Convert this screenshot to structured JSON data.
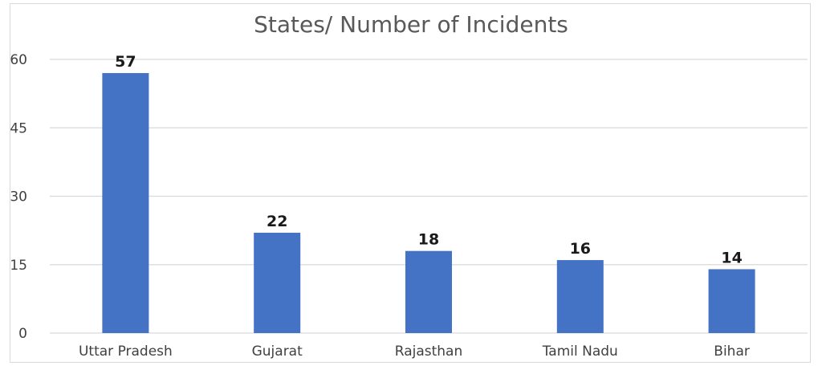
{
  "chart_data": {
    "type": "bar",
    "title": "States/ Number of Incidents",
    "xlabel": "",
    "ylabel": "",
    "categories": [
      "Uttar Pradesh",
      "Gujarat",
      "Rajasthan",
      "Tamil Nadu",
      "Bihar"
    ],
    "values": [
      57,
      22,
      18,
      16,
      14
    ],
    "yticks": [
      0,
      15,
      30,
      45,
      60
    ],
    "ylim": [
      0,
      60
    ],
    "grid": true,
    "legend": "none",
    "colors": {
      "bar": "#4472c4",
      "grid": "#d9d9d9",
      "axis_text": "#404040",
      "title": "#595959"
    }
  }
}
